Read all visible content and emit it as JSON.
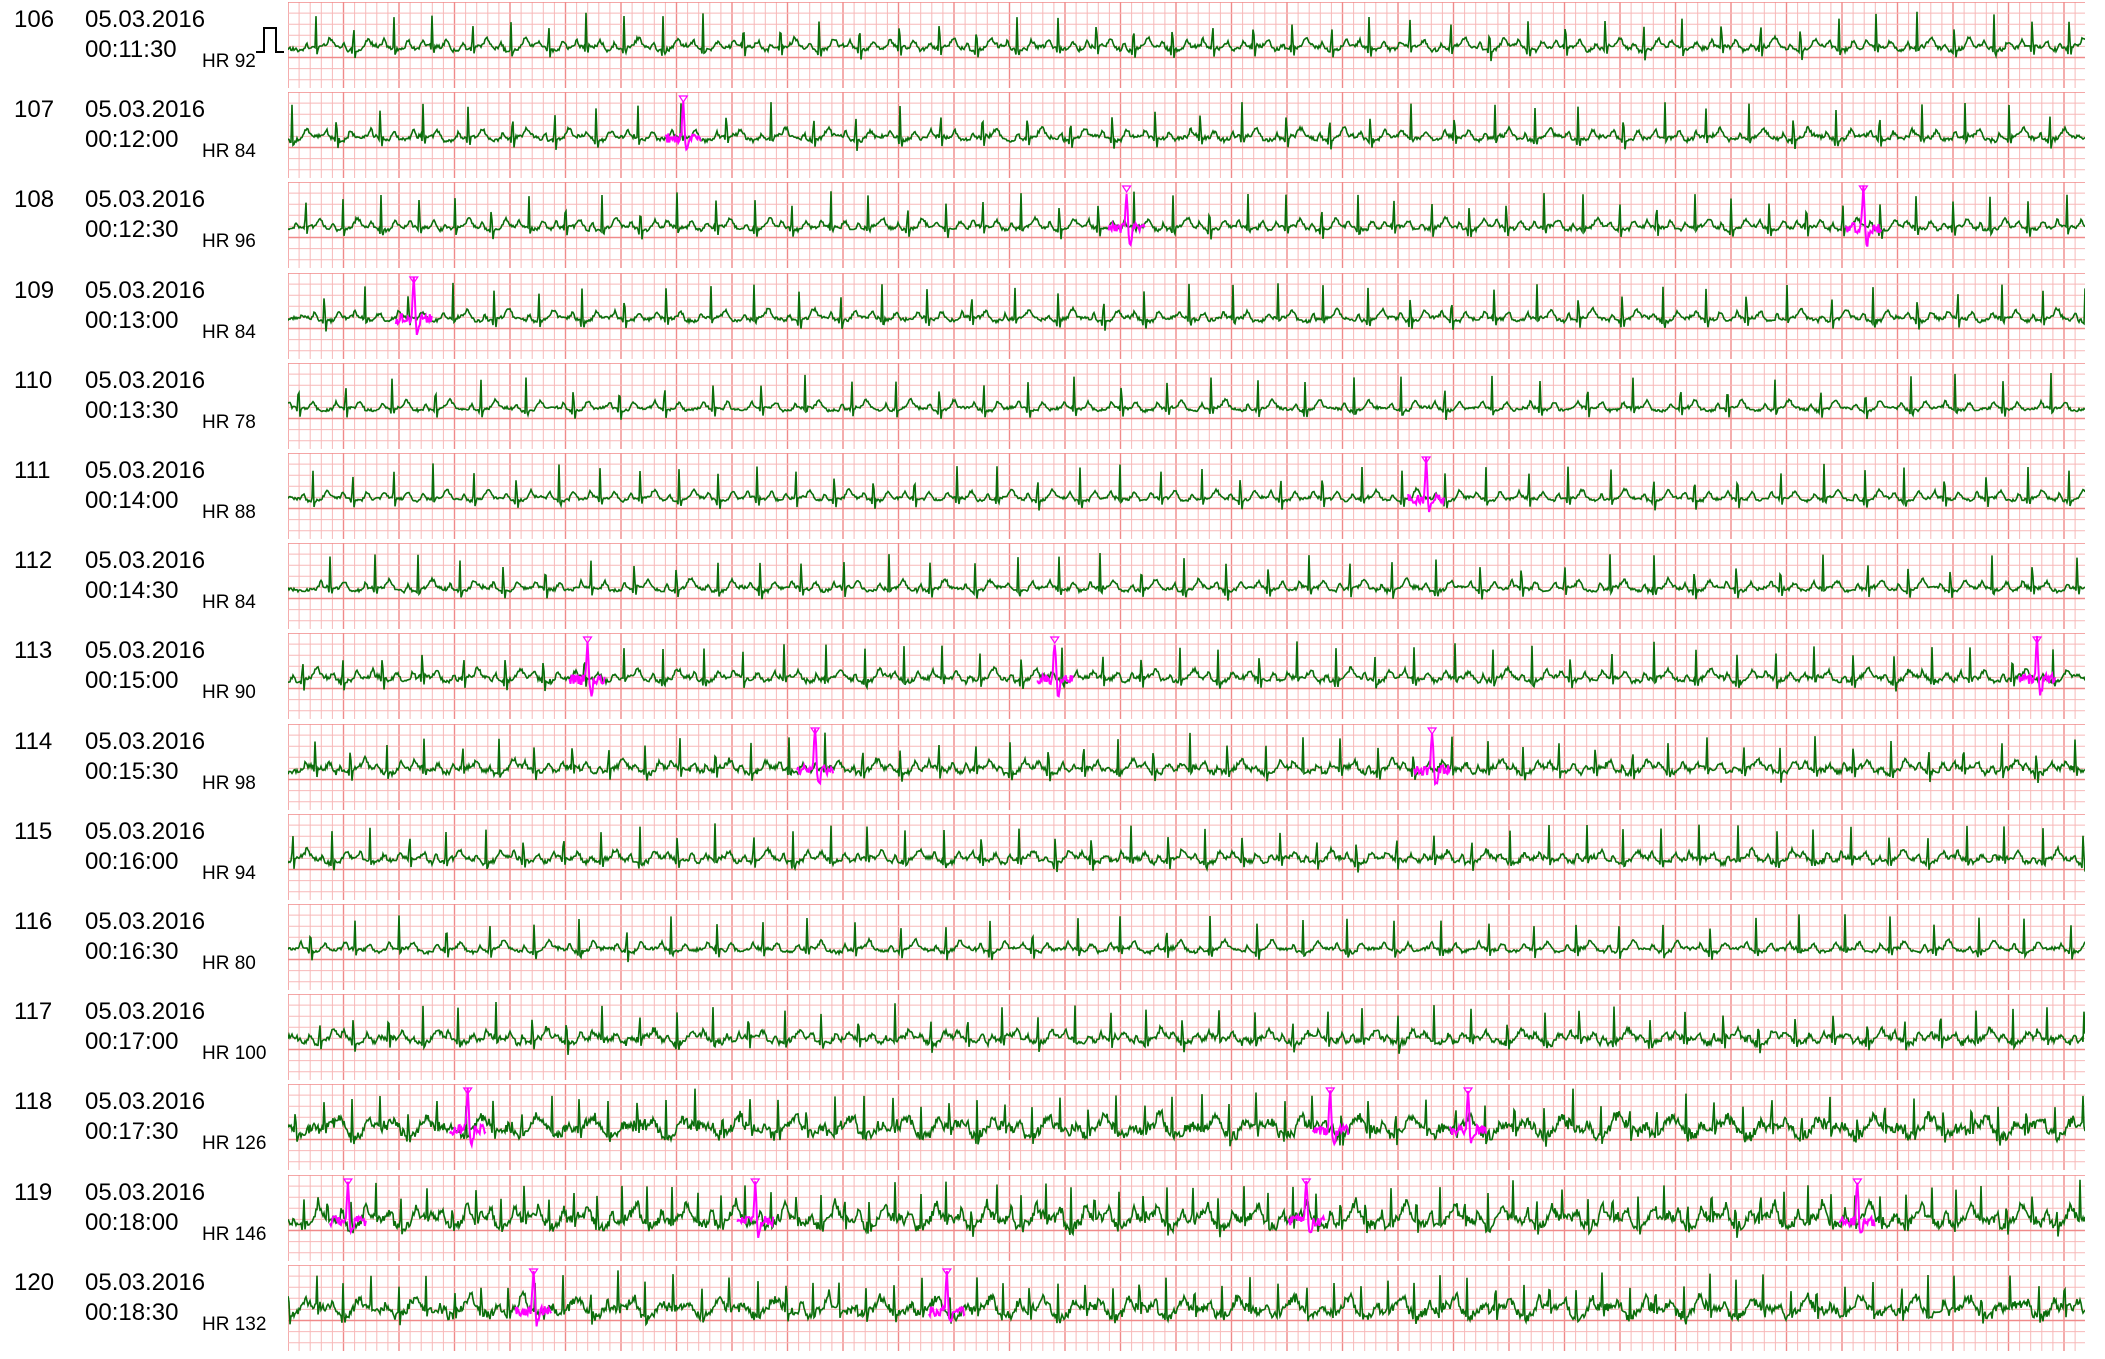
{
  "colors": {
    "grid_minor": "#f7b9b9",
    "grid_major": "#f08a8a",
    "trace_normal": "#0b6e0b",
    "trace_marked": "#ff00ff",
    "background": "#ffffff"
  },
  "chart_data": {
    "type": "line",
    "title": "",
    "xlabel": "",
    "ylabel": "",
    "grid": true,
    "strip_duration_s": 30,
    "strips": [
      {
        "index": "106",
        "date": "05.03.2016",
        "time": "00:11:30",
        "hr_label": "HR 92",
        "hr": 92,
        "calibration_mark": true,
        "noise": 0.35,
        "events_s": []
      },
      {
        "index": "107",
        "date": "05.03.2016",
        "time": "00:12:00",
        "hr_label": "HR 84",
        "hr": 84,
        "calibration_mark": false,
        "noise": 0.35,
        "events_s": [
          6.6
        ]
      },
      {
        "index": "108",
        "date": "05.03.2016",
        "time": "00:12:30",
        "hr_label": "HR 96",
        "hr": 96,
        "calibration_mark": false,
        "noise": 0.3,
        "events_s": [
          14.0,
          26.3
        ]
      },
      {
        "index": "109",
        "date": "05.03.2016",
        "time": "00:13:00",
        "hr_label": "HR 84",
        "hr": 84,
        "calibration_mark": false,
        "noise": 0.3,
        "events_s": [
          2.1
        ]
      },
      {
        "index": "110",
        "date": "05.03.2016",
        "time": "00:13:30",
        "hr_label": "HR 78",
        "hr": 78,
        "calibration_mark": false,
        "noise": 0.25,
        "events_s": []
      },
      {
        "index": "111",
        "date": "05.03.2016",
        "time": "00:14:00",
        "hr_label": "HR 88",
        "hr": 88,
        "calibration_mark": false,
        "noise": 0.25,
        "events_s": [
          19.0
        ]
      },
      {
        "index": "112",
        "date": "05.03.2016",
        "time": "00:14:30",
        "hr_label": "HR 84",
        "hr": 84,
        "calibration_mark": false,
        "noise": 0.3,
        "events_s": []
      },
      {
        "index": "113",
        "date": "05.03.2016",
        "time": "00:15:00",
        "hr_label": "HR 90",
        "hr": 90,
        "calibration_mark": false,
        "noise": 0.4,
        "events_s": [
          5.0,
          12.8,
          29.2
        ]
      },
      {
        "index": "114",
        "date": "05.03.2016",
        "time": "00:15:30",
        "hr_label": "HR 98",
        "hr": 98,
        "calibration_mark": false,
        "noise": 0.45,
        "events_s": [
          8.8,
          19.1
        ]
      },
      {
        "index": "115",
        "date": "05.03.2016",
        "time": "00:16:00",
        "hr_label": "HR 94",
        "hr": 94,
        "calibration_mark": false,
        "noise": 0.4,
        "events_s": []
      },
      {
        "index": "116",
        "date": "05.03.2016",
        "time": "00:16:30",
        "hr_label": "HR 80",
        "hr": 80,
        "calibration_mark": false,
        "noise": 0.3,
        "events_s": []
      },
      {
        "index": "117",
        "date": "05.03.2016",
        "time": "00:17:00",
        "hr_label": "HR 100",
        "hr": 100,
        "calibration_mark": false,
        "noise": 0.5,
        "events_s": []
      },
      {
        "index": "118",
        "date": "05.03.2016",
        "time": "00:17:30",
        "hr_label": "HR 126",
        "hr": 126,
        "calibration_mark": false,
        "noise": 0.9,
        "events_s": [
          3.0,
          17.4,
          19.7
        ]
      },
      {
        "index": "119",
        "date": "05.03.2016",
        "time": "00:18:00",
        "hr_label": "HR 146",
        "hr": 146,
        "calibration_mark": false,
        "noise": 0.85,
        "events_s": [
          1.0,
          7.8,
          17.0,
          26.2
        ]
      },
      {
        "index": "120",
        "date": "05.03.2016",
        "time": "00:18:30",
        "hr_label": "HR 132",
        "hr": 132,
        "calibration_mark": false,
        "noise": 0.8,
        "events_s": [
          4.1,
          11.0
        ]
      }
    ]
  }
}
